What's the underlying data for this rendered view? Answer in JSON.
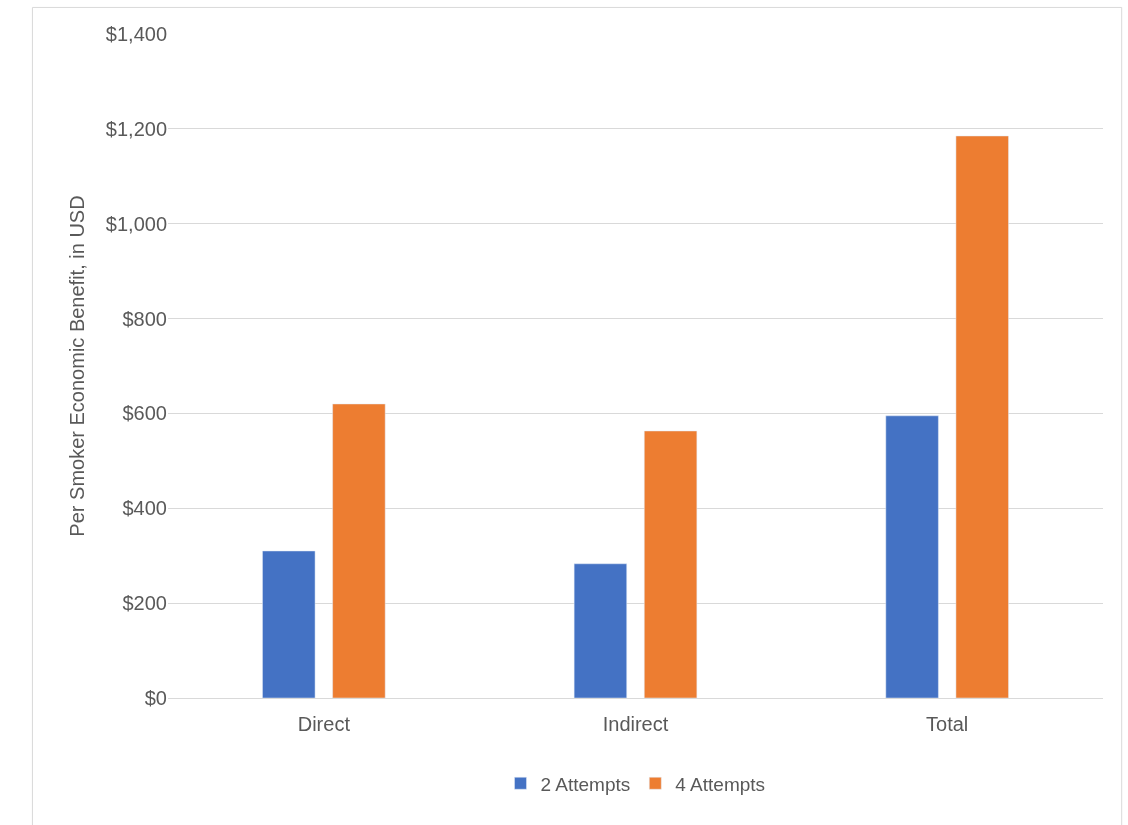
{
  "chart_data": {
    "type": "bar",
    "ylabel": "Per Smoker Economic Benefit, in USD",
    "categories": [
      "Direct",
      "Indirect",
      "Total"
    ],
    "series": [
      {
        "name": "2 Attempts",
        "color": "#4472c4",
        "values": [
          310,
          283,
          595
        ]
      },
      {
        "name": "4 Attempts",
        "color": "#ed7d31",
        "values": [
          620,
          563,
          1185
        ]
      }
    ],
    "ylim": [
      0,
      1400
    ],
    "yticks": [
      {
        "value": 0,
        "label": "$0"
      },
      {
        "value": 200,
        "label": "$200"
      },
      {
        "value": 400,
        "label": "$400"
      },
      {
        "value": 600,
        "label": "$600"
      },
      {
        "value": 800,
        "label": "$800"
      },
      {
        "value": 1000,
        "label": "$1,000"
      },
      {
        "value": 1200,
        "label": "$1,200"
      },
      {
        "value": 1400,
        "label": "$1,400"
      }
    ],
    "grid": "y",
    "legend": "bottom"
  }
}
